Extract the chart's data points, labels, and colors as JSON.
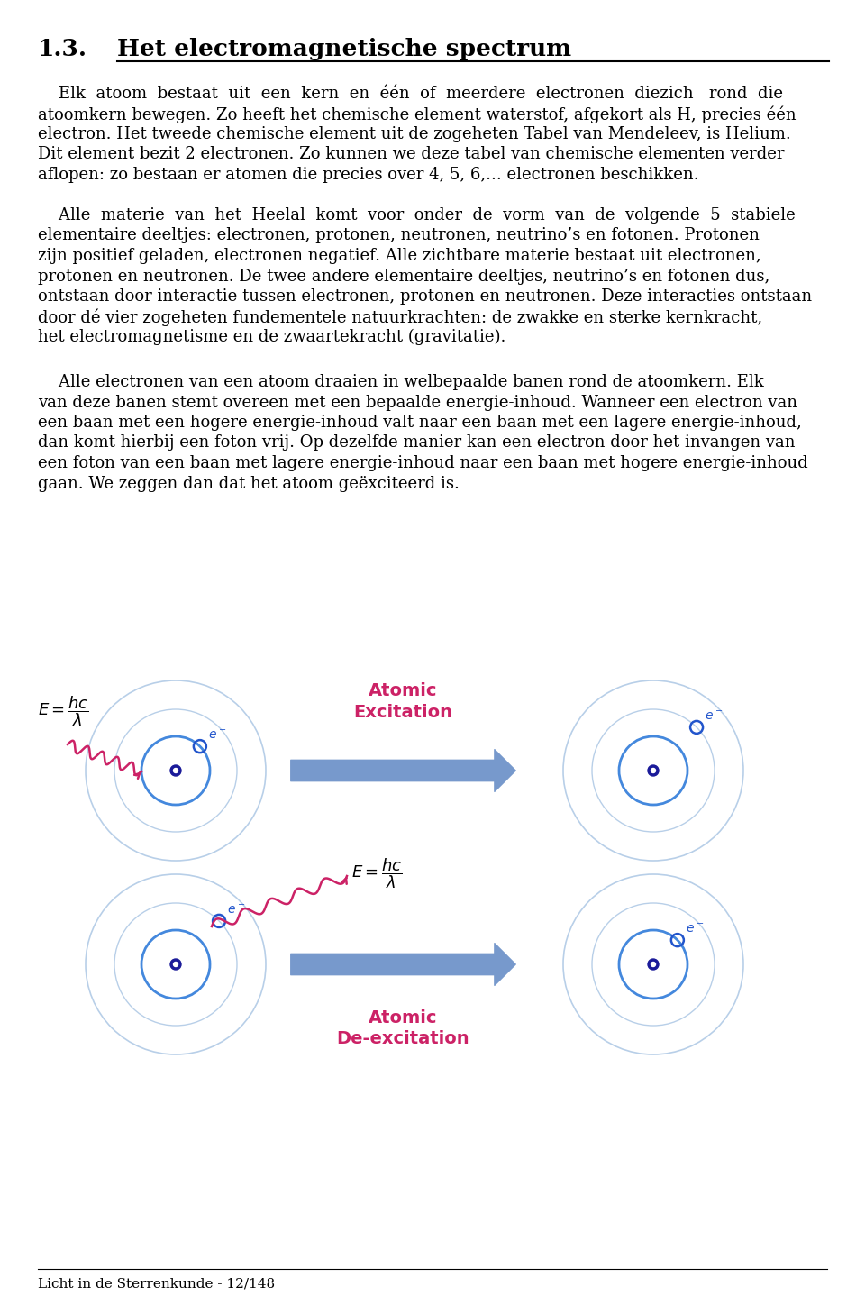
{
  "bg_color": "#ffffff",
  "text_color": "#000000",
  "page_label": "Licht in de Sterrenkunde - 12/148",
  "title_num": "1.3.",
  "title_text": "Het electromagnetische spectrum",
  "p1_line1": "    Elk  atoom  bestaat  uit  een  kern  en  één  of  meerdere  electronen  diezich   rond  die",
  "p1_line2": "atoomkern bewegen. Zo heeft het chemische element waterstof, afgekort als H, precies één",
  "p1_line3": "electron. Het tweede chemische element uit de zogeheten Tabel van Mendeleev, is Helium.",
  "p1_line4": "Dit element bezit 2 electronen. Zo kunnen we deze tabel van chemische elementen verder",
  "p1_line5": "aflopen: zo bestaan er atomen die precies over 4, 5, 6,... electronen beschikken.",
  "p2_line1": "    Alle  materie  van  het  Heelal  komt  voor  onder  de  vorm  van  de  volgende  5  stabiele",
  "p2_line2": "elementaire deeltjes: electronen, protonen, neutronen, neutrino’s en fotonen. Protonen",
  "p2_line3": "zijn positief geladen, electronen negatief. Alle zichtbare materie bestaat uit electronen,",
  "p2_line4": "protonen en neutronen. De twee andere elementaire deeltjes, neutrino’s en fotonen dus,",
  "p2_line5": "ontstaan door interactie tussen electronen, protonen en neutronen. Deze interacties ontstaan",
  "p2_line6": "door dé vier zogeheten fundementele natuurkrachten: de zwakke en sterke kernkracht,",
  "p2_line7": "het electromagnetisme en de zwaartekracht (gravitatie).",
  "p3_line1": "    Alle electronen van een atoom draaien in welbepaalde banen rond de atoomkern. Elk",
  "p3_line2": "van deze banen stemt overeen met een bepaalde energie-inhoud. Wanneer een electron van",
  "p3_line3": "een baan met een hogere energie-inhoud valt naar een baan met een lagere energie-inhoud,",
  "p3_line4": "dan komt hierbij een foton vrij. Op dezelfde manier kan een electron door het invangen van",
  "p3_line5": "een foton van een baan met lagere energie-inhoud naar een baan met hogere energie-inhoud",
  "p3_line6": "gaan. We zeggen dan dat het atoom geëxciteerd is.",
  "orbit_color_outer": "#b8cfe8",
  "orbit_color_inner": "#4488dd",
  "nucleus_color": "#1a1a99",
  "electron_color": "#2255cc",
  "wave_color": "#cc2266",
  "arrow_color": "#7799cc",
  "label_color": "#cc2266",
  "excitation_label": "Atomic\nExcitation",
  "deexcitation_label": "Atomic\nDe-excitation"
}
